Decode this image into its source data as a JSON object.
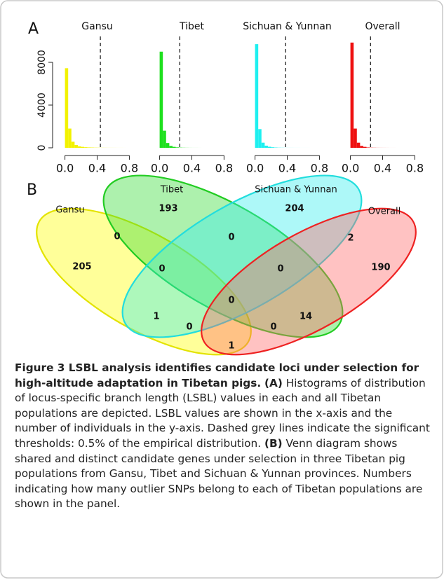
{
  "panel_labels": [
    "A",
    "B"
  ],
  "chart_data": [
    {
      "type": "histogram",
      "title": "Gansu",
      "color": "#f2f200",
      "threshold": 0.44,
      "bins": [
        0,
        0.04,
        0.08,
        0.12,
        0.16,
        0.2,
        0.24,
        0.28,
        0.32,
        0.36,
        0.4,
        0.44,
        0.48,
        0.52,
        0.56,
        0.6,
        0.64,
        0.68,
        0.72,
        0.76
      ],
      "values": [
        7450,
        1800,
        570,
        260,
        130,
        90,
        55,
        38,
        27,
        18,
        13,
        9,
        7,
        5,
        4,
        3,
        2,
        2,
        1
      ],
      "xlim": [
        -0.04,
        0.84
      ],
      "xticks": [
        {
          "value": 0,
          "label": "0.0"
        },
        0.4,
        {
          "value": 0.8,
          "label": "0.8"
        }
      ],
      "ylim": [
        0,
        10000
      ],
      "yticks": [
        0,
        4000,
        8000
      ]
    },
    {
      "type": "histogram",
      "title": "Tibet",
      "color": "#1ee01e",
      "threshold": 0.25,
      "bins": [
        0,
        0.04,
        0.08,
        0.12,
        0.16,
        0.2,
        0.24,
        0.28,
        0.32,
        0.36,
        0.4,
        0.44,
        0.48,
        0.52
      ],
      "values": [
        9000,
        1600,
        450,
        180,
        90,
        43,
        21,
        12,
        7,
        4,
        2,
        2,
        1
      ],
      "xlim": [
        -0.04,
        0.84
      ],
      "xticks": [
        {
          "value": 0,
          "label": "0.0"
        },
        0.4,
        {
          "value": 0.8,
          "label": "0.8"
        }
      ],
      "ylim": [
        0,
        10000
      ]
    },
    {
      "type": "histogram",
      "title": "Sichuan & Yunnan",
      "color": "#1ef0f0",
      "threshold": 0.38,
      "bins": [
        0,
        0.04,
        0.08,
        0.12,
        0.16,
        0.2,
        0.24,
        0.28,
        0.32,
        0.36,
        0.4,
        0.44,
        0.48,
        0.52,
        0.56,
        0.6,
        0.64,
        0.68
      ],
      "values": [
        9700,
        1750,
        480,
        200,
        100,
        52,
        28,
        16,
        10,
        6,
        4,
        3,
        2,
        2,
        1,
        1,
        1
      ],
      "xlim": [
        -0.04,
        0.84
      ],
      "xticks": [
        {
          "value": 0,
          "label": "0.0"
        },
        0.4,
        {
          "value": 0.8,
          "label": "0.8"
        }
      ],
      "ylim": [
        0,
        10000
      ]
    },
    {
      "type": "histogram",
      "title": "Overall",
      "color": "#ee1010",
      "threshold": 0.25,
      "bins": [
        0,
        0.04,
        0.08,
        0.12,
        0.16,
        0.2,
        0.24,
        0.28,
        0.32,
        0.36,
        0.4,
        0.44,
        0.48,
        0.52,
        0.56
      ],
      "values": [
        9850,
        1800,
        480,
        180,
        90,
        35,
        18,
        11,
        6,
        4,
        3,
        2,
        1,
        1
      ],
      "xlim": [
        -0.04,
        0.84
      ],
      "xticks": [
        {
          "value": 0,
          "label": "0.0"
        },
        0.4,
        {
          "value": 0.8,
          "label": "0.8"
        }
      ],
      "ylim": [
        0,
        10000
      ]
    }
  ],
  "venn": {
    "sets": [
      "Gansu",
      "Tibet",
      "Sichuan & Yunnan",
      "Overall"
    ],
    "counts": [
      193,
      204,
      0,
      0,
      2,
      205,
      0,
      0,
      190,
      0,
      1,
      0,
      0,
      14,
      1
    ]
  },
  "caption": {
    "title": "Figure 3 LSBL analysis identifies candidate loci under selection for high-altitude adaptation in Tibetan pigs.",
    "parts": [
      {
        "label": "(A)",
        "text": "Histograms of distribution of locus-specific branch length (LSBL) values in each and all Tibetan populations are depicted. LSBL values are shown in the x-axis and the number of individuals in the y-axis. Dashed grey lines indicate the significant thresholds: 0.5% of the empirical distribution."
      },
      {
        "label": "(B)",
        "text": "Venn diagram shows shared and distinct candidate genes under selection in three Tibetan pig populations from Gansu, Tibet and Sichuan & Yunnan provinces. Numbers indicating how many outlier SNPs belong to each of Tibetan populations are shown in the panel."
      }
    ]
  }
}
